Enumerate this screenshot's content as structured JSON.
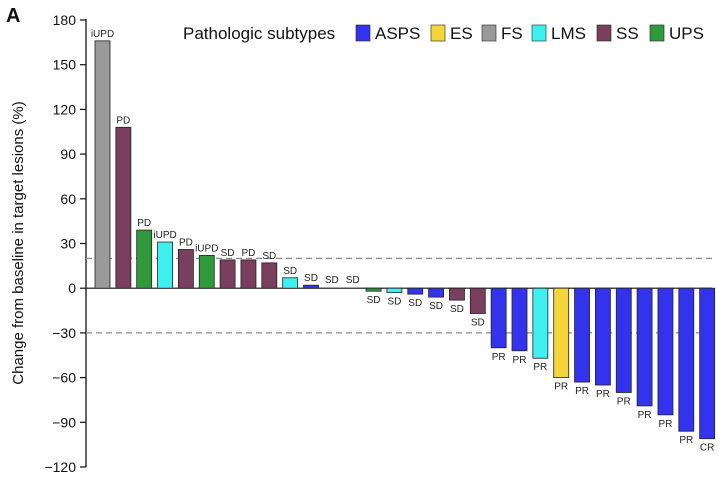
{
  "panel_label": "A",
  "chart_data": {
    "type": "bar",
    "ylabel": "Change from baseline in target lesions (%)",
    "ylim": [
      -120,
      180
    ],
    "yticks": [
      -120,
      -90,
      -60,
      -30,
      0,
      30,
      60,
      90,
      120,
      150,
      180
    ],
    "reference_lines": [
      20,
      -30
    ],
    "legend": {
      "title": "Pathologic subtypes",
      "placement": "top-right",
      "entries": [
        {
          "name": "ASPS",
          "color": "#3333ee"
        },
        {
          "name": "ES",
          "color": "#f5d63a"
        },
        {
          "name": "FS",
          "color": "#9a9a9a"
        },
        {
          "name": "LMS",
          "color": "#3ff0f0"
        },
        {
          "name": "SS",
          "color": "#7a3e5e"
        },
        {
          "name": "UPS",
          "color": "#2f9a3a"
        }
      ]
    },
    "bars": [
      {
        "value": 166,
        "label": "iUPD",
        "subtype": "FS"
      },
      {
        "value": 108,
        "label": "PD",
        "subtype": "SS"
      },
      {
        "value": 39,
        "label": "PD",
        "subtype": "UPS"
      },
      {
        "value": 31,
        "label": "iUPD",
        "subtype": "LMS"
      },
      {
        "value": 26,
        "label": "PD",
        "subtype": "SS"
      },
      {
        "value": 22,
        "label": "iUPD",
        "subtype": "UPS"
      },
      {
        "value": 19,
        "label": "SD",
        "subtype": "SS"
      },
      {
        "value": 19,
        "label": "PD",
        "subtype": "SS"
      },
      {
        "value": 17,
        "label": "SD",
        "subtype": "SS"
      },
      {
        "value": 7,
        "label": "SD",
        "subtype": "LMS"
      },
      {
        "value": 2,
        "label": "SD",
        "subtype": "ASPS"
      },
      {
        "value": 0,
        "label": "SD",
        "subtype": "ASPS"
      },
      {
        "value": 0,
        "label": "SD",
        "subtype": "ASPS"
      },
      {
        "value": -2,
        "label": "SD",
        "subtype": "UPS"
      },
      {
        "value": -3,
        "label": "SD",
        "subtype": "LMS"
      },
      {
        "value": -4,
        "label": "SD",
        "subtype": "ASPS"
      },
      {
        "value": -6,
        "label": "SD",
        "subtype": "ASPS"
      },
      {
        "value": -8,
        "label": "SD",
        "subtype": "SS"
      },
      {
        "value": -17,
        "label": "SD",
        "subtype": "SS"
      },
      {
        "value": -40,
        "label": "PR",
        "subtype": "ASPS"
      },
      {
        "value": -42,
        "label": "PR",
        "subtype": "ASPS"
      },
      {
        "value": -47,
        "label": "PR",
        "subtype": "LMS"
      },
      {
        "value": -60,
        "label": "PR",
        "subtype": "ES"
      },
      {
        "value": -63,
        "label": "PR",
        "subtype": "ASPS"
      },
      {
        "value": -65,
        "label": "PR",
        "subtype": "ASPS"
      },
      {
        "value": -70,
        "label": "PR",
        "subtype": "ASPS"
      },
      {
        "value": -79,
        "label": "PR",
        "subtype": "ASPS"
      },
      {
        "value": -85,
        "label": "PR",
        "subtype": "ASPS"
      },
      {
        "value": -96,
        "label": "PR",
        "subtype": "ASPS"
      },
      {
        "value": -101,
        "label": "CR",
        "subtype": "ASPS"
      }
    ]
  }
}
